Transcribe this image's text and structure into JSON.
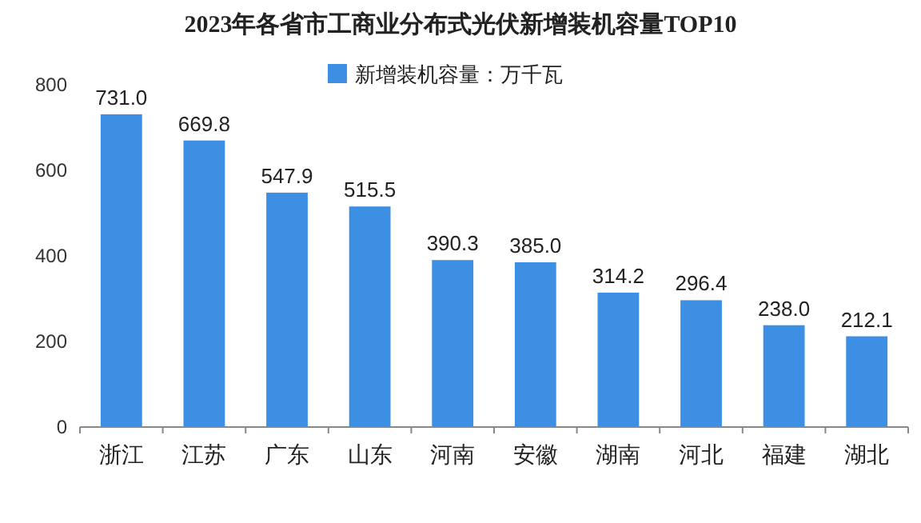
{
  "chart_data": {
    "type": "bar",
    "title": "2023年各省市工商业分布式光伏新增装机容量TOP10",
    "categories": [
      "浙江",
      "江苏",
      "广东",
      "山东",
      "河南",
      "安徽",
      "湖南",
      "河北",
      "福建",
      "湖北"
    ],
    "series": [
      {
        "name": "新增装机容量：万千瓦",
        "color": "#3c8fe3",
        "values": [
          731.0,
          669.8,
          547.9,
          515.5,
          390.3,
          385.0,
          314.2,
          296.4,
          238.0,
          212.1
        ],
        "value_labels": [
          "731.0",
          "669.8",
          "547.9",
          "515.5",
          "390.3",
          "385.0",
          "314.2",
          "296.4",
          "238.0",
          "212.1"
        ]
      }
    ],
    "ylim": [
      0,
      800
    ],
    "yticks": [
      0,
      200,
      400,
      600,
      800
    ],
    "grid": false,
    "legend": "top"
  }
}
